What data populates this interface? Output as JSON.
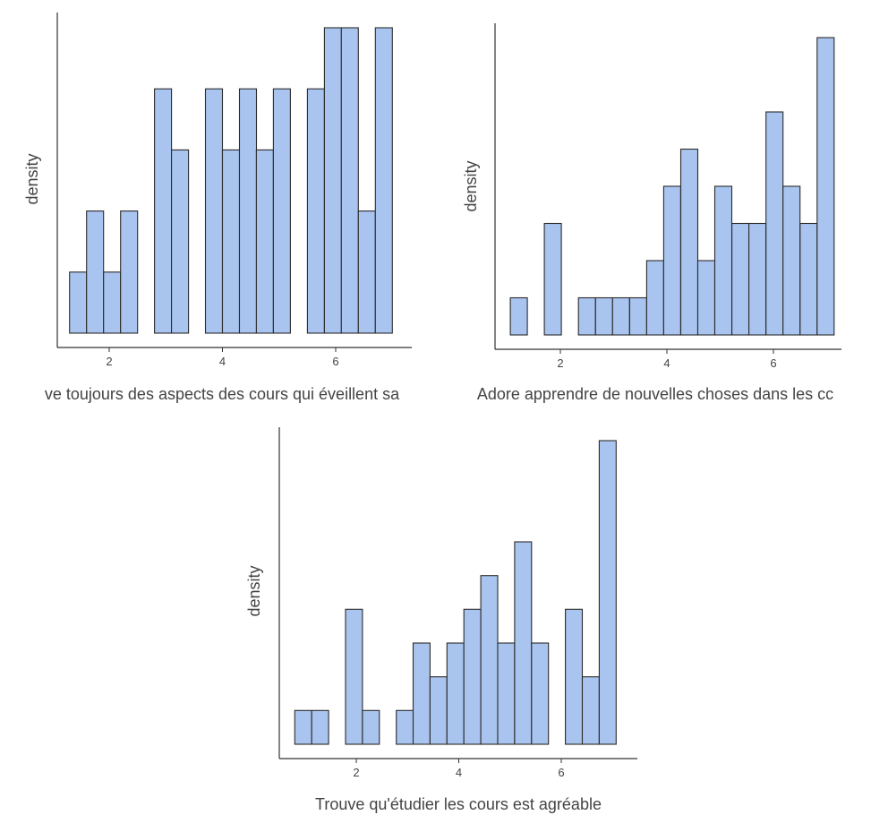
{
  "chart_data": [
    {
      "type": "bar",
      "xlabel": "ve toujours des aspects des cours qui éveillent sa",
      "ylabel": "density",
      "xticks": [
        2,
        4,
        6
      ],
      "bin_width": 0.3,
      "bins_start": [
        1.3,
        1.6,
        1.9,
        2.2,
        2.5,
        2.8,
        3.1,
        3.4,
        3.7,
        4.0,
        4.3,
        4.6,
        4.9,
        5.2,
        5.5,
        5.8,
        6.1,
        6.4,
        6.7
      ],
      "values": [
        1,
        2,
        1,
        2,
        0,
        4,
        3,
        0,
        4,
        3,
        4,
        3,
        4,
        0,
        4,
        5,
        5,
        2,
        5
      ],
      "grid": false
    },
    {
      "type": "bar",
      "xlabel": "Adore apprendre de nouvelles choses dans les cc",
      "ylabel": "density",
      "xticks": [
        2,
        4,
        6
      ],
      "bin_width": 0.32,
      "bins_start": [
        1.06,
        1.38,
        1.7,
        2.02,
        2.34,
        2.66,
        2.98,
        3.3,
        3.62,
        3.94,
        4.26,
        4.58,
        4.9,
        5.22,
        5.54,
        5.86,
        6.18,
        6.5,
        6.82
      ],
      "values": [
        1,
        0,
        3,
        0,
        1,
        1,
        1,
        1,
        2,
        4,
        5,
        2,
        4,
        3,
        3,
        6,
        4,
        3,
        8
      ],
      "grid": false
    },
    {
      "type": "bar",
      "xlabel": "Trouve qu'étudier les cours est agréable",
      "ylabel": "density",
      "xticks": [
        2,
        4,
        6
      ],
      "bin_width": 0.33,
      "bins_start": [
        0.8,
        1.13,
        1.46,
        1.79,
        2.12,
        2.45,
        2.78,
        3.11,
        3.44,
        3.77,
        4.1,
        4.43,
        4.76,
        5.09,
        5.42,
        5.75,
        6.08,
        6.41,
        6.74
      ],
      "values": [
        1,
        1,
        0,
        4,
        1,
        0,
        1,
        3,
        2,
        3,
        4,
        5,
        3,
        6,
        3,
        0,
        4,
        2,
        9
      ],
      "grid": false
    }
  ]
}
